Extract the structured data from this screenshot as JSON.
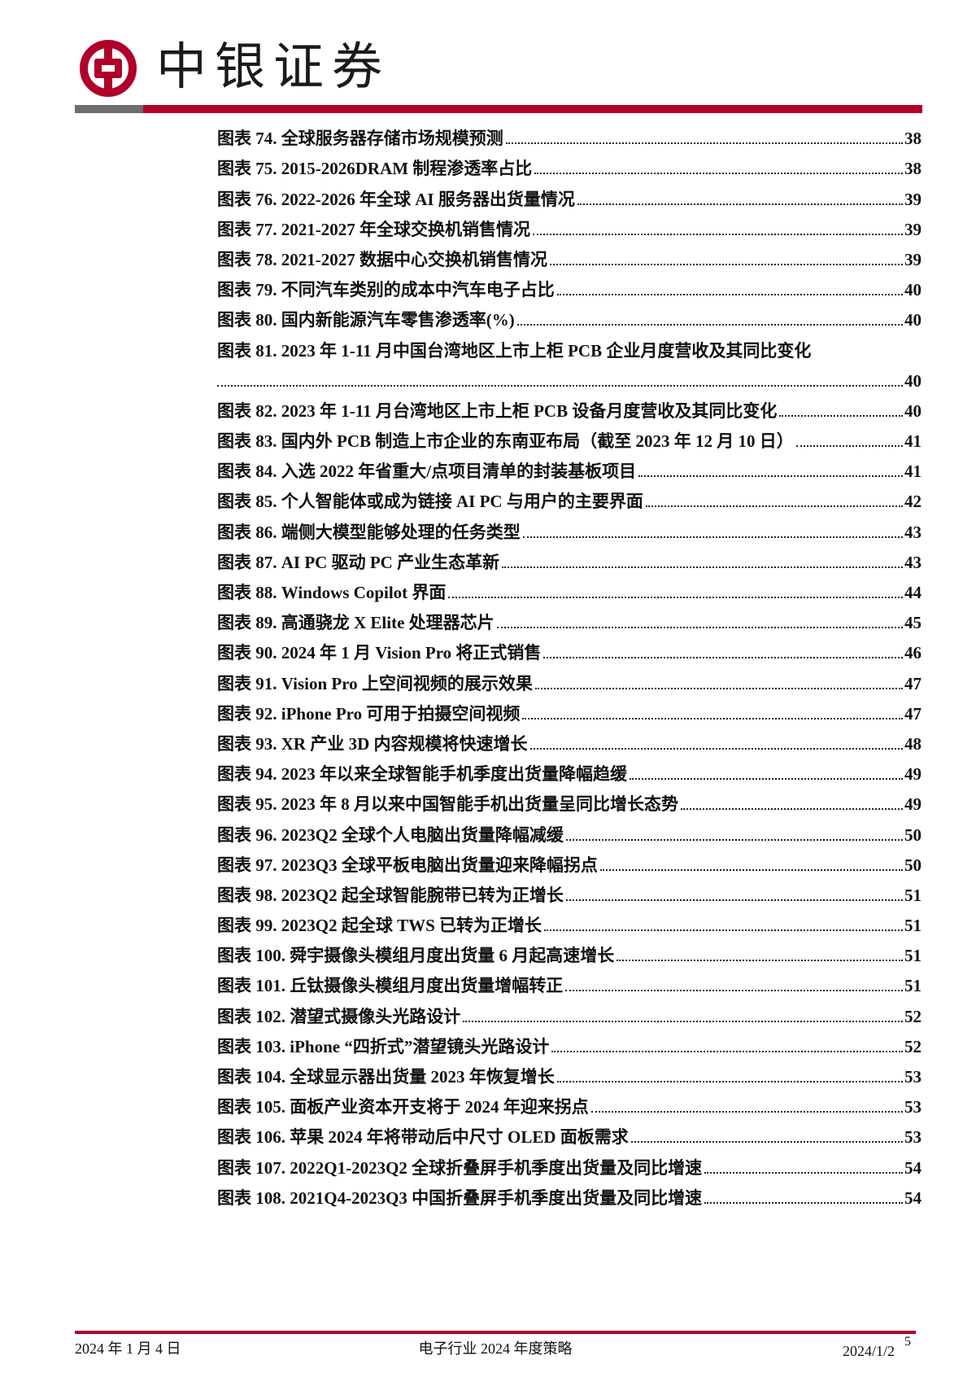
{
  "header": {
    "brand": "中银证券",
    "brand_color": "#b0002a",
    "logo_icon": "bank-of-china-logo"
  },
  "toc": [
    {
      "label": "图表 74. 全球服务器存储市场规模预测",
      "page": "38"
    },
    {
      "label": "图表 75. 2015-2026DRAM 制程渗透率占比",
      "page": "38"
    },
    {
      "label": "图表 76. 2022-2026 年全球 AI 服务器出货量情况",
      "page": "39"
    },
    {
      "label": "图表 77. 2021-2027 年全球交换机销售情况",
      "page": "39"
    },
    {
      "label": "图表 78. 2021-2027 数据中心交换机销售情况",
      "page": "39"
    },
    {
      "label": "图表 79. 不同汽车类别的成本中汽车电子占比",
      "page": "40"
    },
    {
      "label": "图表 80. 国内新能源汽车零售渗透率(%)",
      "page": "40"
    },
    {
      "label": "图表 81. 2023 年 1-11 月中国台湾地区上市上柜 PCB 企业月度营收及其同比变化",
      "page": "40"
    },
    {
      "label": "图表 82. 2023 年 1-11 月台湾地区上市上柜 PCB 设备月度营收及其同比变化",
      "page": "40"
    },
    {
      "label": "图表 83. 国内外 PCB 制造上市企业的东南亚布局（截至 2023 年 12 月 10 日）",
      "page": "41"
    },
    {
      "label": "图表 84. 入选 2022 年省重大/点项目清单的封装基板项目",
      "page": "41"
    },
    {
      "label": "图表 85. 个人智能体或成为链接 AI PC 与用户的主要界面",
      "page": "42"
    },
    {
      "label": "图表 86. 端侧大模型能够处理的任务类型",
      "page": "43"
    },
    {
      "label": "图表 87. AI PC 驱动 PC 产业生态革新",
      "page": "43"
    },
    {
      "label": "图表 88. Windows Copilot 界面",
      "page": "44"
    },
    {
      "label": "图表 89. 高通骁龙 X Elite 处理器芯片",
      "page": "45"
    },
    {
      "label": "图表 90. 2024 年 1 月 Vision Pro 将正式销售",
      "page": "46"
    },
    {
      "label": "图表 91. Vision Pro 上空间视频的展示效果",
      "page": "47"
    },
    {
      "label": "图表 92. iPhone Pro 可用于拍摄空间视频",
      "page": "47"
    },
    {
      "label": "图表 93. XR 产业 3D 内容规模将快速增长",
      "page": "48"
    },
    {
      "label": "图表 94. 2023 年以来全球智能手机季度出货量降幅趋缓",
      "page": "49"
    },
    {
      "label": "图表 95. 2023 年 8 月以来中国智能手机出货量呈同比增长态势",
      "page": "49"
    },
    {
      "label": "图表 96. 2023Q2 全球个人电脑出货量降幅减缓",
      "page": "50"
    },
    {
      "label": "图表 97. 2023Q3 全球平板电脑出货量迎来降幅拐点",
      "page": "50"
    },
    {
      "label": "图表 98. 2023Q2 起全球智能腕带已转为正增长",
      "page": "51"
    },
    {
      "label": "图表 99. 2023Q2 起全球 TWS 已转为正增长",
      "page": "51"
    },
    {
      "label": "图表 100. 舜宇摄像头模组月度出货量 6 月起高速增长",
      "page": "51"
    },
    {
      "label": "图表 101. 丘钛摄像头模组月度出货量增幅转正",
      "page": "51"
    },
    {
      "label": "图表 102. 潜望式摄像头光路设计",
      "page": "52"
    },
    {
      "label": "图表 103. iPhone “四折式”潜望镜头光路设计",
      "page": "52"
    },
    {
      "label": "图表 104. 全球显示器出货量 2023 年恢复增长",
      "page": "53"
    },
    {
      "label": "图表 105. 面板产业资本开支将于 2024 年迎来拐点",
      "page": "53"
    },
    {
      "label": "图表 106. 苹果 2024 年将带动后中尺寸 OLED 面板需求",
      "page": "53"
    },
    {
      "label": "图表 107. 2022Q1-2023Q2 全球折叠屏手机季度出货量及同比增速",
      "page": "54"
    },
    {
      "label": "图表 108. 2021Q4-2023Q3 中国折叠屏手机季度出货量及同比增速",
      "page": "54"
    }
  ],
  "footer": {
    "date": "2024 年 1 月 4 日",
    "title": "电子行业 2024 年度策略",
    "print_date": "2024/1/2",
    "page_number": "5"
  }
}
